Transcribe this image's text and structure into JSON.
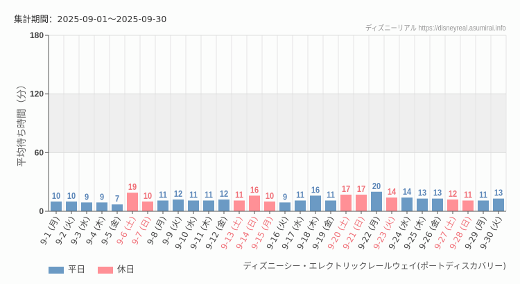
{
  "header": {
    "period": "集計期間：2025-09-01〜2025-09-30",
    "credit": "ディズニーリアル https://disneyreal.asumirai.info"
  },
  "source_label": "ディズニーシー・エレクトリックレールウェイ(ポートディスカバリー)",
  "colors": {
    "weekday": "#6b9ac4",
    "holiday": "#ff9096",
    "weekday_text": "#5b86b8",
    "holiday_text": "#f07078"
  },
  "chart_data": {
    "type": "bar",
    "title": "",
    "ylabel": "平均待ち時間（分）",
    "xlabel": "",
    "ylim": [
      0,
      180
    ],
    "yticks": [
      0,
      60,
      120,
      180
    ],
    "shaded_band": [
      60,
      120
    ],
    "legend": [
      {
        "name": "平日",
        "key": "weekday"
      },
      {
        "name": "休日",
        "key": "holiday"
      }
    ],
    "legend_position": "bottom-left",
    "categories": [
      "9-1 (月)",
      "9-2 (火)",
      "9-3 (水)",
      "9-4 (木)",
      "9-5 (金)",
      "9-6 (土)",
      "9-7 (日)",
      "9-8 (月)",
      "9-9 (火)",
      "9-10 (水)",
      "9-11 (木)",
      "9-12 (金)",
      "9-13 (土)",
      "9-14 (日)",
      "9-15 (月)",
      "9-16 (火)",
      "9-17 (水)",
      "9-18 (木)",
      "9-19 (金)",
      "9-20 (土)",
      "9-21 (日)",
      "9-22 (月)",
      "9-23 (火)",
      "9-24 (水)",
      "9-25 (木)",
      "9-26 (金)",
      "9-27 (土)",
      "9-28 (日)",
      "9-29 (月)",
      "9-30 (火)"
    ],
    "values": [
      10,
      10,
      9,
      9,
      7,
      19,
      10,
      11,
      12,
      11,
      11,
      12,
      11,
      16,
      10,
      9,
      11,
      16,
      11,
      17,
      17,
      20,
      14,
      14,
      13,
      13,
      12,
      11,
      11,
      13
    ],
    "holiday": [
      false,
      false,
      false,
      false,
      false,
      true,
      true,
      false,
      false,
      false,
      false,
      false,
      true,
      true,
      true,
      false,
      false,
      false,
      false,
      true,
      true,
      false,
      true,
      false,
      false,
      false,
      true,
      true,
      false,
      false
    ]
  }
}
